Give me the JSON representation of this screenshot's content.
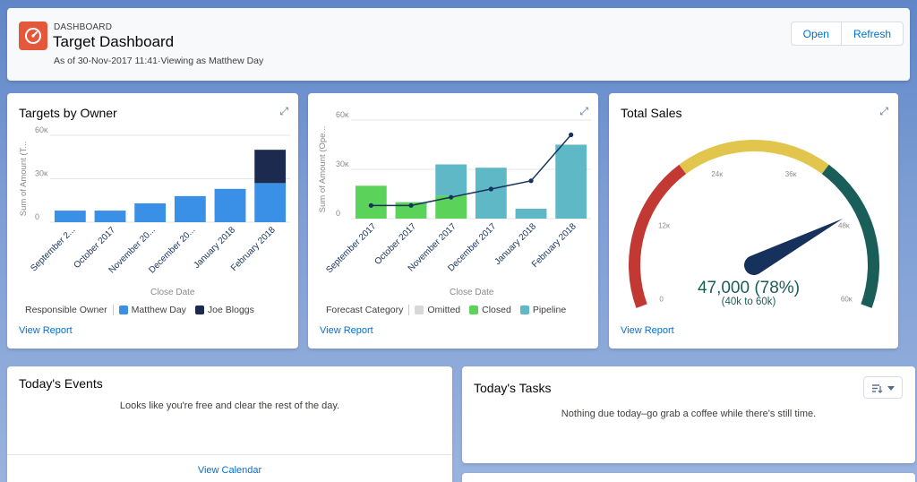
{
  "header": {
    "eyebrow": "DASHBOARD",
    "title": "Target Dashboard",
    "subtitle": "As of 30-Nov-2017 11:41·Viewing as Matthew Day",
    "open_label": "Open",
    "refresh_label": "Refresh"
  },
  "colors": {
    "accent": "#0070d2",
    "icon_bg": "#e4573a",
    "matthew": "#3a8fe6",
    "joe": "#1b2a4e",
    "omitted": "#d8d8d8",
    "closed": "#5bd35b",
    "pipeline": "#5fb8c6",
    "gauge_red": "#c23934",
    "gauge_yellow": "#e2c54c",
    "gauge_green": "#1a5e5a",
    "needle": "#16325c"
  },
  "cards": {
    "targets": {
      "title": "Targets by Owner",
      "view_report": "View Report",
      "x_axis_title": "Close Date",
      "legend_title": "Responsible Owner"
    },
    "forecast": {
      "title": "",
      "view_report": "View Report",
      "x_axis_title": "Close Date",
      "legend_title": "Forecast Category"
    },
    "sales": {
      "title": "Total Sales",
      "view_report": "View Report",
      "value_text": "47,000 (78%)",
      "range_text": "(40k to 60k)"
    }
  },
  "events": {
    "title": "Today's Events",
    "message": "Looks like you're free and clear the rest of the day.",
    "view_calendar": "View Calendar"
  },
  "tasks": {
    "title": "Today's Tasks",
    "message": "Nothing due today–go grab a coffee while there's still time."
  },
  "chart_data": [
    {
      "type": "bar",
      "title": "Targets by Owner",
      "xlabel": "Close Date",
      "ylabel": "Sum of Amount (T...",
      "ylim": [
        0,
        60000
      ],
      "yticks": [
        "60ĸ",
        "30ĸ",
        "0"
      ],
      "categories": [
        "September 2...",
        "October 2017",
        "November 20...",
        "December 20...",
        "January 2018",
        "February 2018"
      ],
      "series": [
        {
          "name": "Matthew Day",
          "values": [
            8000,
            8000,
            13000,
            18000,
            23000,
            27000
          ]
        },
        {
          "name": "Joe Bloggs",
          "values": [
            0,
            0,
            0,
            0,
            0,
            23000
          ]
        }
      ],
      "legend": "bottom"
    },
    {
      "type": "bar",
      "title": "",
      "xlabel": "Close Date",
      "ylabel": "Sum of Amount (Ope...",
      "ylim": [
        0,
        60000
      ],
      "yticks": [
        "60ĸ",
        "30ĸ",
        "0"
      ],
      "categories": [
        "September 2017",
        "October 2017",
        "November 2017",
        "December 2017",
        "January 2018",
        "February 2018"
      ],
      "series": [
        {
          "name": "Omitted",
          "values": [
            0,
            0,
            0,
            0,
            0,
            0
          ]
        },
        {
          "name": "Closed",
          "values": [
            20000,
            10000,
            14000,
            0,
            0,
            0
          ]
        },
        {
          "name": "Pipeline",
          "values": [
            0,
            0,
            19000,
            31000,
            6000,
            45000
          ]
        }
      ],
      "line": [
        8000,
        8000,
        13000,
        18000,
        23000,
        51000
      ],
      "legend": "bottom"
    },
    {
      "type": "gauge",
      "title": "Total Sales",
      "min": 0,
      "max": 60000,
      "ticks": [
        "0",
        "12ĸ",
        "24ĸ",
        "36ĸ",
        "48ĸ",
        "60ĸ"
      ],
      "value": 47000,
      "bands": [
        {
          "from": 0,
          "to": 20000,
          "color": "#c23934"
        },
        {
          "from": 20000,
          "to": 40000,
          "color": "#e2c54c"
        },
        {
          "from": 40000,
          "to": 60000,
          "color": "#1a5e5a"
        }
      ]
    }
  ]
}
